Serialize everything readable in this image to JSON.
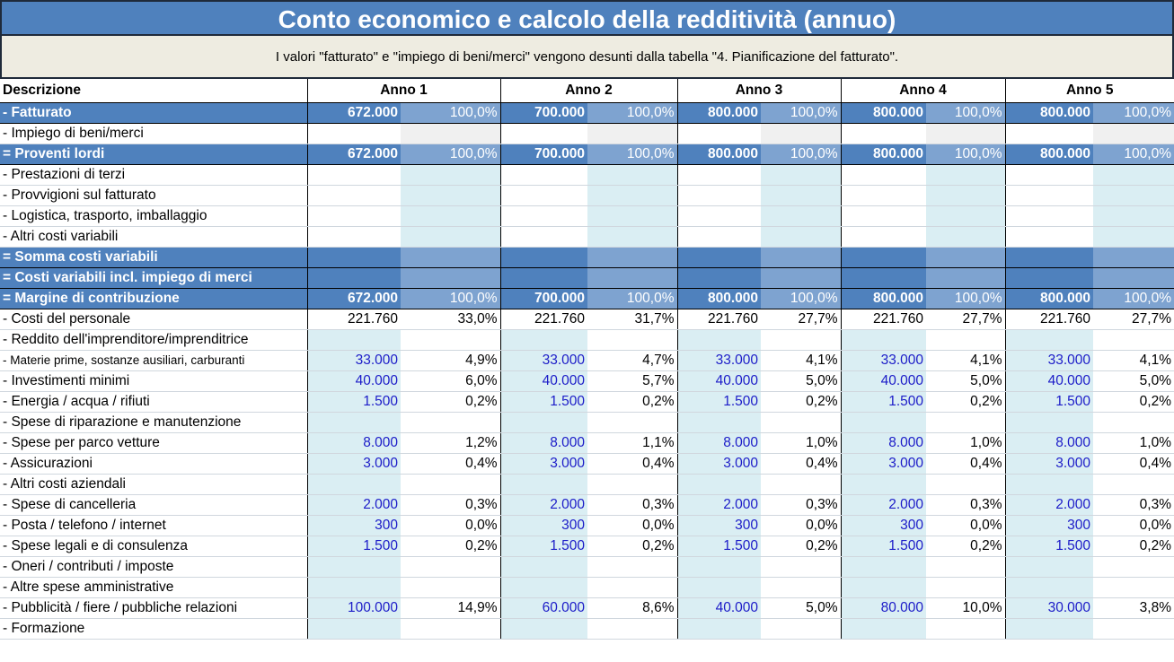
{
  "title": "Conto economico e calcolo della redditività (annuo)",
  "note": "I valori \"fatturato\" e \"impiego di beni/merci\" vengono desunti dalla tabella \"4. Pianificazione del fatturato\".",
  "header": {
    "description": "Descrizione",
    "years": [
      "Anno 1",
      "Anno 2",
      "Anno 3",
      "Anno 4",
      "Anno 5"
    ]
  },
  "rows": [
    {
      "label": " - Fatturato",
      "type": "hl",
      "cells": [
        [
          "672.000",
          "100,0%"
        ],
        [
          "700.000",
          "100,0%"
        ],
        [
          "800.000",
          "100,0%"
        ],
        [
          "800.000",
          "100,0%"
        ],
        [
          "800.000",
          "100,0%"
        ]
      ]
    },
    {
      "label": "-  Impiego di beni/merci",
      "type": "gray",
      "cells": [
        [
          "",
          ""
        ],
        [
          "",
          ""
        ],
        [
          "",
          ""
        ],
        [
          "",
          ""
        ],
        [
          "",
          ""
        ]
      ]
    },
    {
      "label": "= Proventi lordi",
      "type": "hl",
      "cells": [
        [
          "672.000",
          "100,0%"
        ],
        [
          "700.000",
          "100,0%"
        ],
        [
          "800.000",
          "100,0%"
        ],
        [
          "800.000",
          "100,0%"
        ],
        [
          "800.000",
          "100,0%"
        ]
      ]
    },
    {
      "label": "-  Prestazioni di terzi",
      "type": "pshade",
      "cells": [
        [
          "",
          ""
        ],
        [
          "",
          ""
        ],
        [
          "",
          ""
        ],
        [
          "",
          ""
        ],
        [
          "",
          ""
        ]
      ]
    },
    {
      "label": "-  Provvigioni sul fatturato",
      "type": "pshade",
      "cells": [
        [
          "",
          ""
        ],
        [
          "",
          ""
        ],
        [
          "",
          ""
        ],
        [
          "",
          ""
        ],
        [
          "",
          ""
        ]
      ]
    },
    {
      "label": "-  Logistica, trasporto, imballaggio",
      "type": "pshade",
      "cells": [
        [
          "",
          ""
        ],
        [
          "",
          ""
        ],
        [
          "",
          ""
        ],
        [
          "",
          ""
        ],
        [
          "",
          ""
        ]
      ]
    },
    {
      "label": "-  Altri costi variabili",
      "type": "pshade",
      "cells": [
        [
          "",
          ""
        ],
        [
          "",
          ""
        ],
        [
          "",
          ""
        ],
        [
          "",
          ""
        ],
        [
          "",
          ""
        ]
      ]
    },
    {
      "label": "=  Somma costi variabili",
      "type": "hl",
      "cells": [
        [
          "",
          ""
        ],
        [
          "",
          ""
        ],
        [
          "",
          ""
        ],
        [
          "",
          ""
        ],
        [
          "",
          ""
        ]
      ]
    },
    {
      "label": "=  Costi variabili incl. impiego di merci",
      "type": "hl",
      "cells": [
        [
          "",
          ""
        ],
        [
          "",
          ""
        ],
        [
          "",
          ""
        ],
        [
          "",
          ""
        ],
        [
          "",
          ""
        ]
      ]
    },
    {
      "label": "=  Margine di contribuzione",
      "type": "hl",
      "cells": [
        [
          "672.000",
          "100,0%"
        ],
        [
          "700.000",
          "100,0%"
        ],
        [
          "800.000",
          "100,0%"
        ],
        [
          "800.000",
          "100,0%"
        ],
        [
          "800.000",
          "100,0%"
        ]
      ]
    },
    {
      "label": "- Costi del personale",
      "type": "plain",
      "cells": [
        [
          "221.760",
          "33,0%"
        ],
        [
          "221.760",
          "31,7%"
        ],
        [
          "221.760",
          "27,7%"
        ],
        [
          "221.760",
          "27,7%"
        ],
        [
          "221.760",
          "27,7%"
        ]
      ]
    },
    {
      "label": "- Reddito dell'imprenditore/imprenditrice",
      "type": "vshade",
      "cells": [
        [
          "",
          ""
        ],
        [
          "",
          ""
        ],
        [
          "",
          ""
        ],
        [
          "",
          ""
        ],
        [
          "",
          ""
        ]
      ]
    },
    {
      "label": "- Materie prime, sostanze ausiliari, carburanti",
      "type": "vshade",
      "small": true,
      "cells": [
        [
          "33.000",
          "4,9%"
        ],
        [
          "33.000",
          "4,7%"
        ],
        [
          "33.000",
          "4,1%"
        ],
        [
          "33.000",
          "4,1%"
        ],
        [
          "33.000",
          "4,1%"
        ]
      ]
    },
    {
      "label": "- Investimenti minimi",
      "type": "vshade",
      "cells": [
        [
          "40.000",
          "6,0%"
        ],
        [
          "40.000",
          "5,7%"
        ],
        [
          "40.000",
          "5,0%"
        ],
        [
          "40.000",
          "5,0%"
        ],
        [
          "40.000",
          "5,0%"
        ]
      ]
    },
    {
      "label": "- Energia / acqua / rifiuti",
      "type": "vshade",
      "cells": [
        [
          "1.500",
          "0,2%"
        ],
        [
          "1.500",
          "0,2%"
        ],
        [
          "1.500",
          "0,2%"
        ],
        [
          "1.500",
          "0,2%"
        ],
        [
          "1.500",
          "0,2%"
        ]
      ]
    },
    {
      "label": "- Spese di riparazione e manutenzione",
      "type": "vshade",
      "cells": [
        [
          "",
          ""
        ],
        [
          "",
          ""
        ],
        [
          "",
          ""
        ],
        [
          "",
          ""
        ],
        [
          "",
          ""
        ]
      ]
    },
    {
      "label": "- Spese per parco vetture",
      "type": "vshade",
      "cells": [
        [
          "8.000",
          "1,2%"
        ],
        [
          "8.000",
          "1,1%"
        ],
        [
          "8.000",
          "1,0%"
        ],
        [
          "8.000",
          "1,0%"
        ],
        [
          "8.000",
          "1,0%"
        ]
      ]
    },
    {
      "label": "- Assicurazioni",
      "type": "vshade",
      "cells": [
        [
          "3.000",
          "0,4%"
        ],
        [
          "3.000",
          "0,4%"
        ],
        [
          "3.000",
          "0,4%"
        ],
        [
          "3.000",
          "0,4%"
        ],
        [
          "3.000",
          "0,4%"
        ]
      ]
    },
    {
      "label": "- Altri costi aziendali",
      "type": "vshade",
      "cells": [
        [
          "",
          ""
        ],
        [
          "",
          ""
        ],
        [
          "",
          ""
        ],
        [
          "",
          ""
        ],
        [
          "",
          ""
        ]
      ]
    },
    {
      "label": "- Spese di cancelleria",
      "type": "vshade",
      "cells": [
        [
          "2.000",
          "0,3%"
        ],
        [
          "2.000",
          "0,3%"
        ],
        [
          "2.000",
          "0,3%"
        ],
        [
          "2.000",
          "0,3%"
        ],
        [
          "2.000",
          "0,3%"
        ]
      ]
    },
    {
      "label": "- Posta / telefono / internet",
      "type": "vshade",
      "cells": [
        [
          "300",
          "0,0%"
        ],
        [
          "300",
          "0,0%"
        ],
        [
          "300",
          "0,0%"
        ],
        [
          "300",
          "0,0%"
        ],
        [
          "300",
          "0,0%"
        ]
      ]
    },
    {
      "label": "- Spese legali e di consulenza",
      "type": "vshade",
      "cells": [
        [
          "1.500",
          "0,2%"
        ],
        [
          "1.500",
          "0,2%"
        ],
        [
          "1.500",
          "0,2%"
        ],
        [
          "1.500",
          "0,2%"
        ],
        [
          "1.500",
          "0,2%"
        ]
      ]
    },
    {
      "label": "- Oneri / contributi / imposte",
      "type": "vshade",
      "cells": [
        [
          "",
          ""
        ],
        [
          "",
          ""
        ],
        [
          "",
          ""
        ],
        [
          "",
          ""
        ],
        [
          "",
          ""
        ]
      ]
    },
    {
      "label": "- Altre spese amministrative",
      "type": "vshade",
      "cells": [
        [
          "",
          ""
        ],
        [
          "",
          ""
        ],
        [
          "",
          ""
        ],
        [
          "",
          ""
        ],
        [
          "",
          ""
        ]
      ]
    },
    {
      "label": "- Pubblicità / fiere / pubbliche relazioni",
      "type": "vshade",
      "cells": [
        [
          "100.000",
          "14,9%"
        ],
        [
          "60.000",
          "8,6%"
        ],
        [
          "40.000",
          "5,0%"
        ],
        [
          "80.000",
          "10,0%"
        ],
        [
          "30.000",
          "3,8%"
        ]
      ]
    },
    {
      "label": "- Formazione",
      "type": "vshade",
      "cells": [
        [
          "",
          ""
        ],
        [
          "",
          ""
        ],
        [
          "",
          ""
        ],
        [
          "",
          ""
        ],
        [
          "",
          ""
        ]
      ]
    }
  ]
}
